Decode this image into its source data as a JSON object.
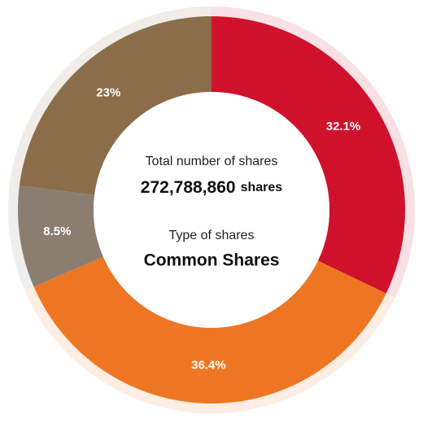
{
  "chart_data": {
    "type": "donut",
    "categories": [
      null,
      null,
      null,
      null
    ],
    "values": [
      32.1,
      36.4,
      8.5,
      23
    ],
    "value_labels": [
      "32.1%",
      "36.4%",
      "8.5%",
      "23%"
    ],
    "colors": [
      "#d0112b",
      "#ee7623",
      "#8b7e71",
      "#8b6d4a"
    ],
    "center": {
      "total_label": "Total number of shares",
      "total_value": "272,788,860",
      "total_unit": "shares",
      "type_label": "Type of shares",
      "type_value": "Common Shares"
    }
  }
}
